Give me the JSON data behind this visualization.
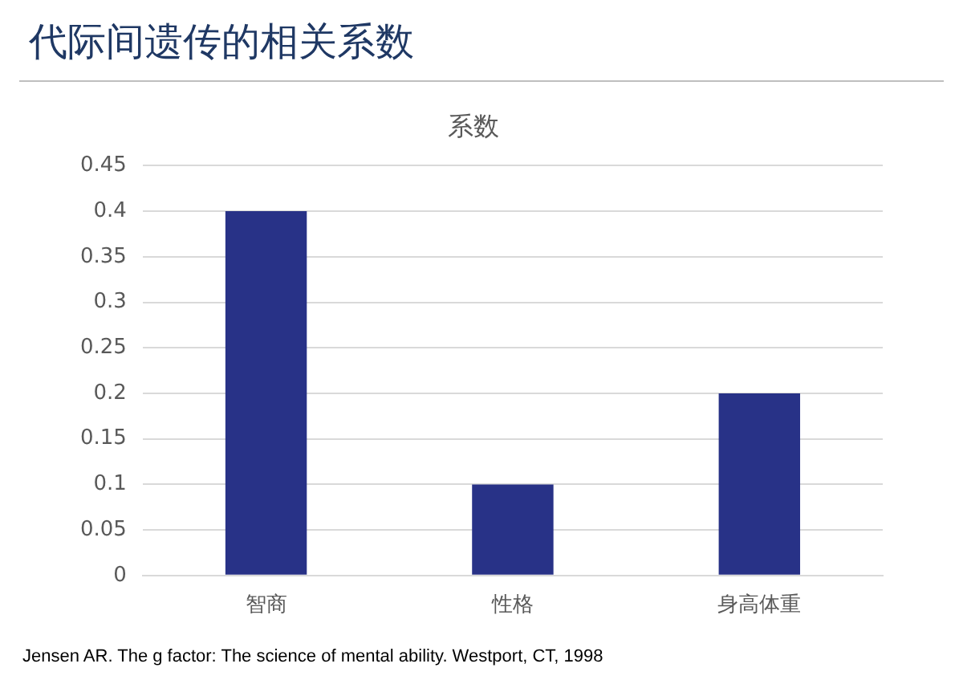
{
  "chart_data": {
    "type": "bar",
    "title": "系数",
    "categories": [
      "智商",
      "性格",
      "身高体重"
    ],
    "values": [
      0.4,
      0.1,
      0.2
    ],
    "color": "#283287",
    "ylim": [
      0,
      0.45
    ],
    "yticks": [
      0,
      0.05,
      0.1,
      0.15,
      0.2,
      0.25,
      0.3,
      0.35,
      0.4,
      0.45
    ],
    "grid": "y",
    "annotations": [
      "代际间遗传的相关系数",
      "Jensen AR. The g factor: The science of mental ability. Westport, CT, 1998"
    ]
  }
}
